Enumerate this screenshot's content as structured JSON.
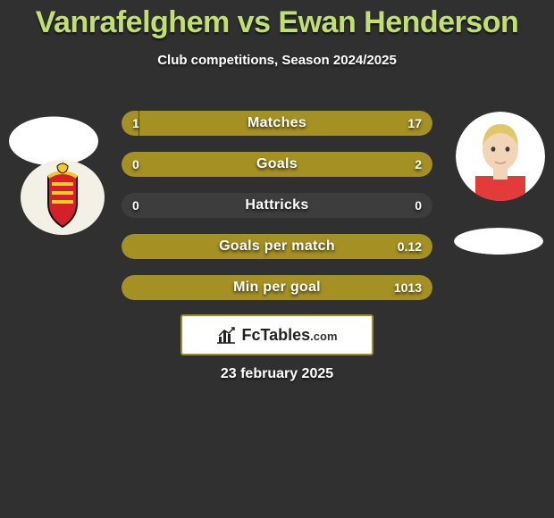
{
  "title": "Vanrafelghem vs Ewan Henderson",
  "title_color": "#c0e070",
  "subtitle": "Club competitions, Season 2024/2025",
  "background_color": "#303030",
  "bar_track_color": "#3d3d3d",
  "left_color": "#a59023",
  "right_color": "#a59023",
  "max_bar_width": 348,
  "bars": [
    {
      "label": "Matches",
      "left_val": "1",
      "right_val": "17",
      "left_pct": 5.6,
      "right_pct": 94.4
    },
    {
      "label": "Goals",
      "left_val": "0",
      "right_val": "2",
      "left_pct": 0.0,
      "right_pct": 100.0
    },
    {
      "label": "Hattricks",
      "left_val": "0",
      "right_val": "0",
      "left_pct": 0.0,
      "right_pct": 0.0
    },
    {
      "label": "Goals per match",
      "left_val": "",
      "right_val": "0.12",
      "left_pct": 0.0,
      "right_pct": 100.0
    },
    {
      "label": "Min per goal",
      "left_val": "",
      "right_val": "1013",
      "left_pct": 0.0,
      "right_pct": 100.0
    }
  ],
  "badge": {
    "brand": "FcTables",
    "suffix": ".com",
    "border_color": "#9a8d2a",
    "icon_color": "#222222"
  },
  "date": "23 february 2025",
  "players": {
    "left": {
      "has_photo": false
    },
    "right": {
      "has_photo": true,
      "skin": "#f2d4b8",
      "hair": "#e0c868"
    }
  },
  "clubs": {
    "left": {
      "has_crest": true,
      "bg": "#f3f1e6",
      "red": "#d4202a",
      "yellow": "#f3c92a",
      "black": "#111111"
    },
    "right": {
      "has_crest": false
    }
  }
}
